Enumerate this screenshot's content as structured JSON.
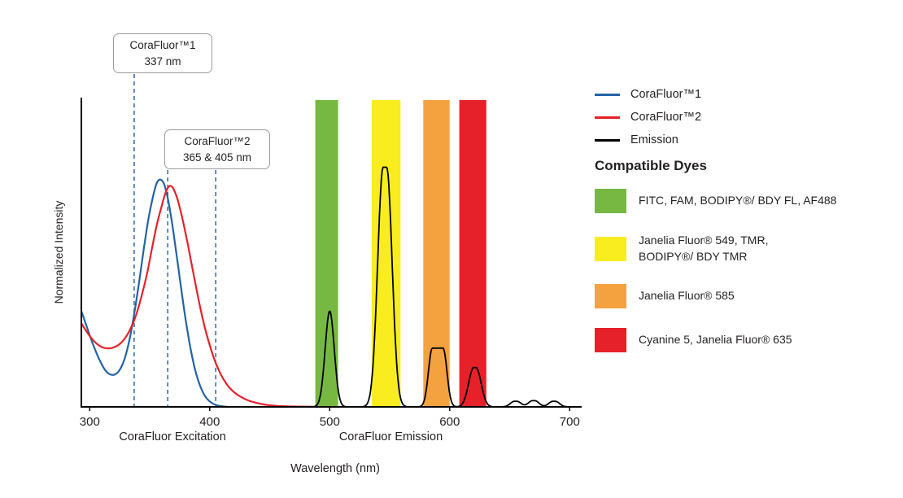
{
  "chart_data": {
    "type": "line",
    "title": "",
    "xlabel": "Wavelength (nm)",
    "ylabel": "Normalized Intensity",
    "xlim": [
      293,
      710
    ],
    "ylim": [
      0,
      1
    ],
    "x_ticks": [
      300,
      400,
      500,
      600,
      700
    ],
    "x_section_labels": [
      {
        "label": "CoraFluor Excitation",
        "center_wl": 369
      },
      {
        "label": "CoraFluor Emission",
        "center_wl": 551
      }
    ],
    "annotation_line_color": "#3a6fa8",
    "annotations": [
      {
        "label_line1": "CoraFluor™1",
        "label_line2": "337 nm",
        "lines_x": [
          337
        ]
      },
      {
        "label_line1": "CoraFluor™2",
        "label_line2": "365 & 405 nm",
        "lines_x": [
          365,
          405
        ]
      }
    ],
    "bands": [
      {
        "name": "green",
        "color": "#77b843",
        "x0": 488,
        "x1": 507
      },
      {
        "name": "yellow",
        "color": "#f9ec1f",
        "x0": 535,
        "x1": 559
      },
      {
        "name": "orange",
        "color": "#f4a240",
        "x0": 578,
        "x1": 600
      },
      {
        "name": "red",
        "color": "#e62129",
        "x0": 608,
        "x1": 630.5
      }
    ],
    "series": [
      {
        "id": "corafluor1",
        "name": "CoraFluor™1",
        "color": "#2463a5",
        "points": [
          [
            293,
            0.31
          ],
          [
            297,
            0.265
          ],
          [
            301,
            0.22
          ],
          [
            305,
            0.18
          ],
          [
            309,
            0.145
          ],
          [
            313,
            0.118
          ],
          [
            317,
            0.105
          ],
          [
            321,
            0.105
          ],
          [
            325,
            0.12
          ],
          [
            329,
            0.155
          ],
          [
            333,
            0.215
          ],
          [
            337,
            0.3
          ],
          [
            341,
            0.4
          ],
          [
            345,
            0.51
          ],
          [
            349,
            0.61
          ],
          [
            353,
            0.685
          ],
          [
            356,
            0.725
          ],
          [
            359,
            0.735
          ],
          [
            362,
            0.72
          ],
          [
            365,
            0.675
          ],
          [
            368,
            0.61
          ],
          [
            371,
            0.53
          ],
          [
            374,
            0.445
          ],
          [
            377,
            0.36
          ],
          [
            380,
            0.28
          ],
          [
            383,
            0.21
          ],
          [
            386,
            0.15
          ],
          [
            389,
            0.103
          ],
          [
            392,
            0.068
          ],
          [
            395,
            0.042
          ],
          [
            398,
            0.025
          ],
          [
            402,
            0.012
          ],
          [
            406,
            0.005
          ],
          [
            410,
            0.002
          ],
          [
            415,
            0
          ]
        ]
      },
      {
        "id": "corafluor2",
        "name": "CoraFluor™2",
        "color": "#e62129",
        "points": [
          [
            293,
            0.27
          ],
          [
            298,
            0.24
          ],
          [
            303,
            0.215
          ],
          [
            308,
            0.198
          ],
          [
            313,
            0.19
          ],
          [
            318,
            0.19
          ],
          [
            323,
            0.198
          ],
          [
            328,
            0.215
          ],
          [
            333,
            0.245
          ],
          [
            338,
            0.29
          ],
          [
            343,
            0.355
          ],
          [
            348,
            0.435
          ],
          [
            352,
            0.515
          ],
          [
            356,
            0.59
          ],
          [
            360,
            0.65
          ],
          [
            363,
            0.69
          ],
          [
            366,
            0.713
          ],
          [
            369,
            0.71
          ],
          [
            372,
            0.685
          ],
          [
            375,
            0.645
          ],
          [
            378,
            0.595
          ],
          [
            381,
            0.54
          ],
          [
            384,
            0.48
          ],
          [
            387,
            0.42
          ],
          [
            390,
            0.36
          ],
          [
            393,
            0.305
          ],
          [
            396,
            0.255
          ],
          [
            400,
            0.2
          ],
          [
            404,
            0.152
          ],
          [
            408,
            0.115
          ],
          [
            412,
            0.086
          ],
          [
            416,
            0.064
          ],
          [
            421,
            0.045
          ],
          [
            426,
            0.032
          ],
          [
            432,
            0.021
          ],
          [
            438,
            0.014
          ],
          [
            445,
            0.008
          ],
          [
            453,
            0.004
          ],
          [
            462,
            0.002
          ],
          [
            475,
            0.001
          ],
          [
            490,
            0
          ]
        ]
      },
      {
        "id": "emission",
        "name": "Emission",
        "color": "#000000"
      }
    ],
    "emission_peaks": [
      {
        "center": 500,
        "height": 0.31,
        "sigma": 3.8,
        "flat": 0
      },
      {
        "center": 546,
        "height": 0.775,
        "sigma": 4.5,
        "flat": 3
      },
      {
        "center": 590,
        "height": 0.19,
        "sigma": 3.2,
        "flat": 9
      },
      {
        "center": 621,
        "height": 0.127,
        "sigma": 4.2,
        "flat": 2
      },
      {
        "center": 655,
        "height": 0.018,
        "sigma": 3.5,
        "flat": 2
      },
      {
        "center": 670,
        "height": 0.02,
        "sigma": 3.5,
        "flat": 2
      },
      {
        "center": 687,
        "height": 0.018,
        "sigma": 3.5,
        "flat": 2
      }
    ]
  },
  "compatible_dyes": {
    "heading": "Compatible Dyes",
    "items": [
      {
        "name": "green-filter",
        "color": "#77b843",
        "label": "FITC, FAM, BODIPY®/ BDY FL, AF488"
      },
      {
        "name": "yellow-filter",
        "color": "#f9ec1f",
        "label": "Janelia Fluor® 549, TMR,\nBODIPY®/ BDY TMR"
      },
      {
        "name": "orange-filter",
        "color": "#f4a240",
        "label": "Janelia Fluor® 585"
      },
      {
        "name": "red-filter",
        "color": "#e62129",
        "label": "Cyanine 5, Janelia Fluor® 635"
      }
    ]
  }
}
